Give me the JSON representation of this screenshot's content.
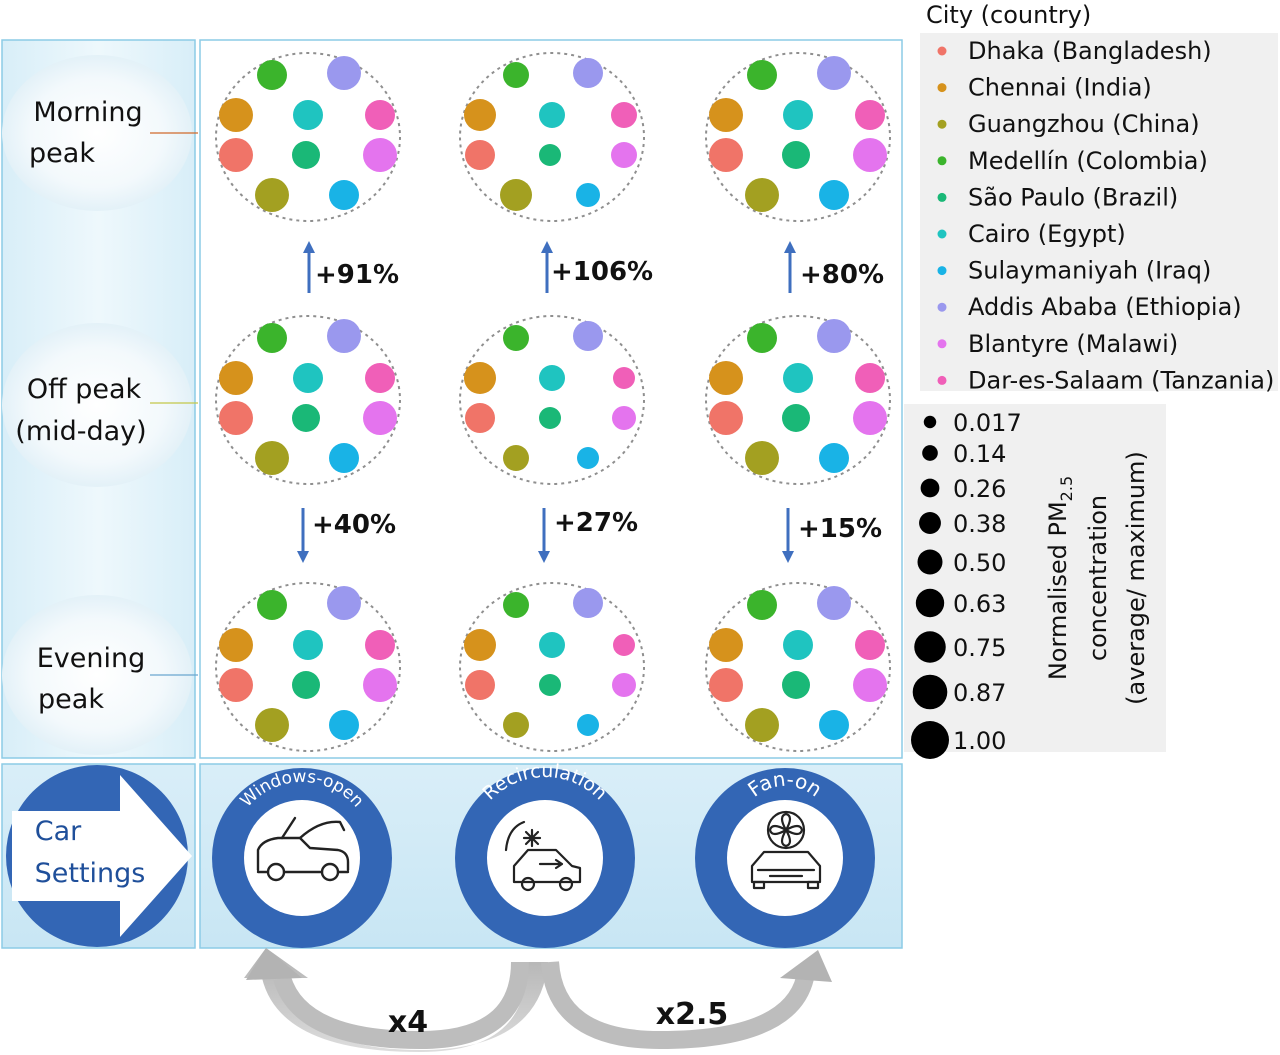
{
  "rows": [
    {
      "label_line1": "Morning",
      "label_line2": "peak"
    },
    {
      "label_line1": "Off peak",
      "label_line2": "(mid-day)"
    },
    {
      "label_line1": "Evening",
      "label_line2": "peak"
    }
  ],
  "changes": {
    "off_to_morning": [
      "+91%",
      "+106%",
      "+80%"
    ],
    "off_to_evening": [
      "+40%",
      "+27%",
      "+15%"
    ]
  },
  "car_settings": {
    "label_line1": "Car",
    "label_line2": "Settings",
    "modes": [
      "Windows-open",
      "Recirculation",
      "Fan-on"
    ],
    "icons": [
      "convertible-car-icon",
      "recirculation-car-icon",
      "fan-car-icon"
    ]
  },
  "multipliers": {
    "to_windows_open": "x4",
    "to_fan_on": "x2.5"
  },
  "legend": {
    "title": "City (country)",
    "cities": [
      {
        "name": "Dhaka (Bangladesh)",
        "color": "#f07468"
      },
      {
        "name": "Chennai (India)",
        "color": "#d6921c"
      },
      {
        "name": "Guangzhou (China)",
        "color": "#a3a021"
      },
      {
        "name": "Medellín (Colombia)",
        "color": "#3bb42c"
      },
      {
        "name": "São Paulo (Brazil)",
        "color": "#1ab877"
      },
      {
        "name": "Cairo (Egypt)",
        "color": "#1fc4c0"
      },
      {
        "name": "Sulaymaniyah (Iraq)",
        "color": "#19b3e6"
      },
      {
        "name": "Addis Ababa (Ethiopia)",
        "color": "#9a98ee"
      },
      {
        "name": "Blantyre (Malawi)",
        "color": "#e474ee"
      },
      {
        "name": "Dar-es-Salaam (Tanzania)",
        "color": "#f05fb8"
      }
    ]
  },
  "size_legend": {
    "title_line1": "Normalised PM",
    "title_subscript": "2.5",
    "title_line2": "concentration",
    "title_line3": "(average/ maximum)",
    "values": [
      "0.017",
      "0.14",
      "0.26",
      "0.38",
      "0.50",
      "0.63",
      "0.75",
      "0.87",
      "1.00"
    ]
  }
}
